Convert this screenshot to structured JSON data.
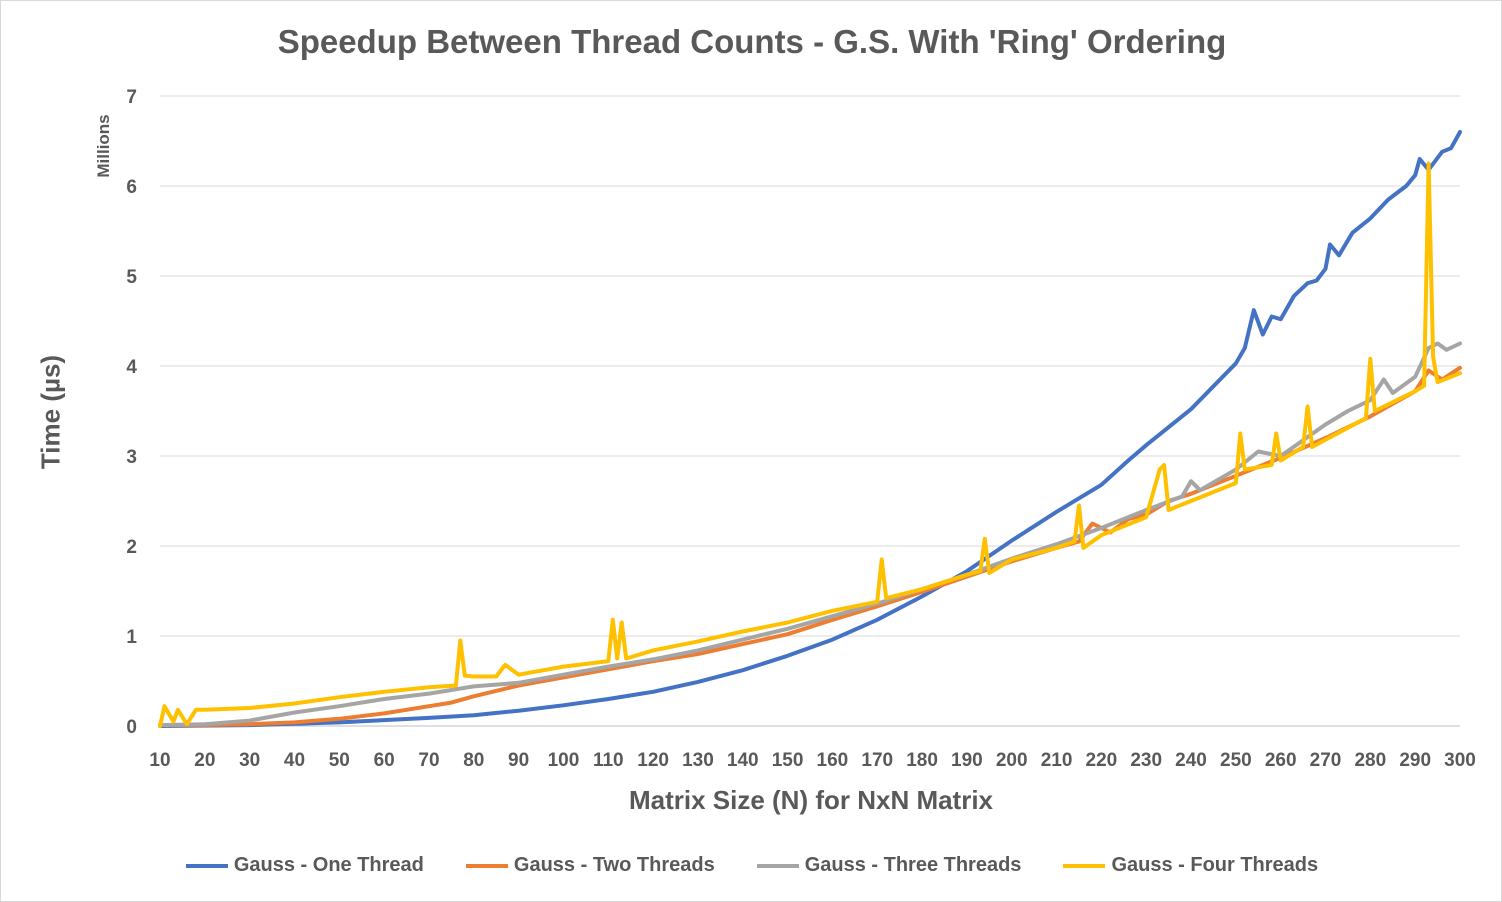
{
  "chart_data": {
    "type": "line",
    "title": "Speedup Between Thread Counts - G.S. With 'Ring' Ordering",
    "xlabel": "Matrix Size (N) for NxN Matrix",
    "ylabel": "Time (µs)",
    "yunit": "Millions",
    "xlim": [
      10,
      300
    ],
    "ylim": [
      0,
      7
    ],
    "xticks": [
      10,
      20,
      30,
      40,
      50,
      60,
      70,
      80,
      90,
      100,
      110,
      120,
      130,
      140,
      150,
      160,
      170,
      180,
      190,
      200,
      210,
      220,
      230,
      240,
      250,
      260,
      270,
      280,
      290,
      300
    ],
    "yticks": [
      0,
      1,
      2,
      3,
      4,
      5,
      6,
      7
    ],
    "grid": "horizontal",
    "legend_position": "bottom",
    "series": [
      {
        "name": "Gauss - One Thread",
        "color": "#4472c4",
        "points": [
          [
            10,
            0
          ],
          [
            30,
            0.01
          ],
          [
            50,
            0.04
          ],
          [
            70,
            0.09
          ],
          [
            80,
            0.12
          ],
          [
            90,
            0.17
          ],
          [
            100,
            0.23
          ],
          [
            110,
            0.3
          ],
          [
            120,
            0.38
          ],
          [
            130,
            0.49
          ],
          [
            140,
            0.62
          ],
          [
            150,
            0.78
          ],
          [
            160,
            0.96
          ],
          [
            170,
            1.18
          ],
          [
            180,
            1.44
          ],
          [
            190,
            1.72
          ],
          [
            200,
            2.06
          ],
          [
            210,
            2.38
          ],
          [
            220,
            2.68
          ],
          [
            226,
            2.95
          ],
          [
            230,
            3.12
          ],
          [
            240,
            3.52
          ],
          [
            250,
            4.03
          ],
          [
            252,
            4.2
          ],
          [
            254,
            4.62
          ],
          [
            256,
            4.35
          ],
          [
            258,
            4.55
          ],
          [
            260,
            4.52
          ],
          [
            263,
            4.78
          ],
          [
            266,
            4.92
          ],
          [
            268,
            4.95
          ],
          [
            270,
            5.08
          ],
          [
            271,
            5.35
          ],
          [
            273,
            5.23
          ],
          [
            276,
            5.48
          ],
          [
            280,
            5.64
          ],
          [
            284,
            5.85
          ],
          [
            288,
            6.0
          ],
          [
            290,
            6.12
          ],
          [
            291,
            6.3
          ],
          [
            293,
            6.18
          ],
          [
            296,
            6.38
          ],
          [
            298,
            6.42
          ],
          [
            300,
            6.6
          ]
        ]
      },
      {
        "name": "Gauss - Two Threads",
        "color": "#ed7d31",
        "points": [
          [
            10,
            0.01
          ],
          [
            20,
            0.01
          ],
          [
            30,
            0.02
          ],
          [
            40,
            0.04
          ],
          [
            50,
            0.08
          ],
          [
            60,
            0.14
          ],
          [
            70,
            0.22
          ],
          [
            75,
            0.26
          ],
          [
            80,
            0.33
          ],
          [
            90,
            0.45
          ],
          [
            100,
            0.54
          ],
          [
            110,
            0.63
          ],
          [
            120,
            0.72
          ],
          [
            130,
            0.8
          ],
          [
            140,
            0.91
          ],
          [
            150,
            1.02
          ],
          [
            160,
            1.18
          ],
          [
            170,
            1.33
          ],
          [
            180,
            1.49
          ],
          [
            190,
            1.66
          ],
          [
            200,
            1.83
          ],
          [
            210,
            1.98
          ],
          [
            215,
            2.05
          ],
          [
            218,
            2.25
          ],
          [
            222,
            2.15
          ],
          [
            226,
            2.3
          ],
          [
            230,
            2.35
          ],
          [
            235,
            2.5
          ],
          [
            240,
            2.58
          ],
          [
            250,
            2.78
          ],
          [
            260,
            2.98
          ],
          [
            270,
            3.2
          ],
          [
            280,
            3.44
          ],
          [
            290,
            3.72
          ],
          [
            293,
            3.95
          ],
          [
            296,
            3.85
          ],
          [
            300,
            3.98
          ]
        ]
      },
      {
        "name": "Gauss - Three Threads",
        "color": "#a5a5a5",
        "points": [
          [
            10,
            0.01
          ],
          [
            20,
            0.02
          ],
          [
            30,
            0.06
          ],
          [
            40,
            0.15
          ],
          [
            50,
            0.22
          ],
          [
            60,
            0.3
          ],
          [
            70,
            0.36
          ],
          [
            80,
            0.44
          ],
          [
            90,
            0.48
          ],
          [
            100,
            0.57
          ],
          [
            110,
            0.66
          ],
          [
            120,
            0.74
          ],
          [
            130,
            0.84
          ],
          [
            140,
            0.96
          ],
          [
            150,
            1.08
          ],
          [
            160,
            1.22
          ],
          [
            170,
            1.36
          ],
          [
            180,
            1.52
          ],
          [
            190,
            1.68
          ],
          [
            200,
            1.86
          ],
          [
            210,
            2.02
          ],
          [
            220,
            2.2
          ],
          [
            230,
            2.4
          ],
          [
            238,
            2.55
          ],
          [
            240,
            2.72
          ],
          [
            242,
            2.62
          ],
          [
            250,
            2.85
          ],
          [
            255,
            3.05
          ],
          [
            260,
            3.0
          ],
          [
            270,
            3.35
          ],
          [
            275,
            3.5
          ],
          [
            280,
            3.62
          ],
          [
            283,
            3.85
          ],
          [
            285,
            3.7
          ],
          [
            290,
            3.88
          ],
          [
            293,
            4.2
          ],
          [
            295,
            4.25
          ],
          [
            297,
            4.18
          ],
          [
            300,
            4.25
          ]
        ]
      },
      {
        "name": "Gauss - Four Threads",
        "color": "#ffc000",
        "points": [
          [
            10,
            0.0
          ],
          [
            11,
            0.22
          ],
          [
            13,
            0.05
          ],
          [
            14,
            0.18
          ],
          [
            16,
            0.02
          ],
          [
            18,
            0.18
          ],
          [
            20,
            0.18
          ],
          [
            30,
            0.2
          ],
          [
            40,
            0.25
          ],
          [
            50,
            0.32
          ],
          [
            60,
            0.38
          ],
          [
            70,
            0.43
          ],
          [
            76,
            0.45
          ],
          [
            77,
            0.95
          ],
          [
            78,
            0.56
          ],
          [
            80,
            0.55
          ],
          [
            85,
            0.55
          ],
          [
            87,
            0.68
          ],
          [
            90,
            0.57
          ],
          [
            100,
            0.66
          ],
          [
            110,
            0.72
          ],
          [
            111,
            1.18
          ],
          [
            112,
            0.75
          ],
          [
            113,
            1.15
          ],
          [
            114,
            0.75
          ],
          [
            120,
            0.84
          ],
          [
            130,
            0.94
          ],
          [
            140,
            1.05
          ],
          [
            150,
            1.15
          ],
          [
            160,
            1.28
          ],
          [
            170,
            1.38
          ],
          [
            171,
            1.85
          ],
          [
            172,
            1.42
          ],
          [
            180,
            1.52
          ],
          [
            190,
            1.68
          ],
          [
            193,
            1.72
          ],
          [
            194,
            2.08
          ],
          [
            195,
            1.7
          ],
          [
            200,
            1.85
          ],
          [
            210,
            1.98
          ],
          [
            214,
            2.05
          ],
          [
            215,
            2.45
          ],
          [
            216,
            1.98
          ],
          [
            220,
            2.12
          ],
          [
            230,
            2.32
          ],
          [
            233,
            2.85
          ],
          [
            234,
            2.9
          ],
          [
            235,
            2.4
          ],
          [
            240,
            2.5
          ],
          [
            250,
            2.7
          ],
          [
            251,
            3.25
          ],
          [
            252,
            2.85
          ],
          [
            258,
            2.9
          ],
          [
            259,
            3.25
          ],
          [
            260,
            2.95
          ],
          [
            265,
            3.1
          ],
          [
            266,
            3.55
          ],
          [
            267,
            3.1
          ],
          [
            270,
            3.18
          ],
          [
            279,
            3.42
          ],
          [
            280,
            4.08
          ],
          [
            281,
            3.5
          ],
          [
            290,
            3.72
          ],
          [
            292,
            3.78
          ],
          [
            293,
            6.25
          ],
          [
            294,
            4.1
          ],
          [
            295,
            3.82
          ],
          [
            300,
            3.92
          ]
        ]
      }
    ]
  }
}
